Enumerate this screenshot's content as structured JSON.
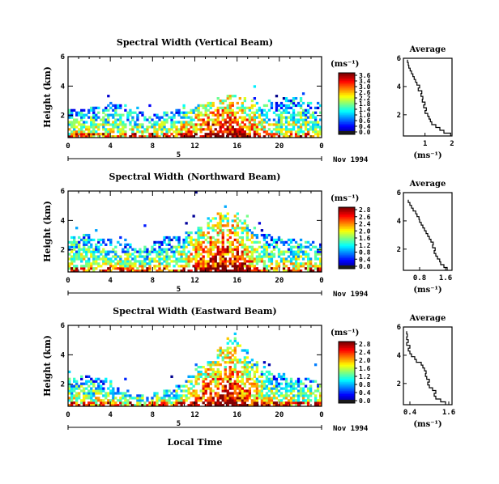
{
  "chart_data": [
    {
      "type": "heatmap",
      "title": "Spectral Width (Vertical Beam)",
      "ylabel": "Height (km)",
      "xlabel": "",
      "x_ticks": [
        "0",
        "4",
        "8",
        "12",
        "16",
        "20",
        "0"
      ],
      "y_ticks": [
        "2",
        "4",
        "6"
      ],
      "xlim": [
        0,
        24
      ],
      "ylim": [
        0.5,
        6
      ],
      "date_marker": "5",
      "date_label": "Nov 1994",
      "colorbar": {
        "unit": "(ms⁻¹)",
        "ticks": [
          "3.6",
          "3.4",
          "3.0",
          "2.6",
          "2.2",
          "1.8",
          "1.4",
          "1.0",
          "0.6",
          "0.4",
          "0.0"
        ],
        "range": [
          0,
          3.6
        ]
      },
      "density": {
        "top_km": [
          2.4,
          2.5,
          2.6,
          2.6,
          2.7,
          2.4,
          2.2,
          2.0,
          2.1,
          2.3,
          2.4,
          2.5,
          2.7,
          2.9,
          3.2,
          3.4,
          3.3,
          3.0,
          2.8,
          2.9,
          3.2,
          3.3,
          3.0,
          2.7
        ],
        "scale": 1.0
      },
      "average_profile": {
        "title": "Average",
        "xlabel": "(ms⁻¹)",
        "x_ticks": [
          "1",
          "2"
        ],
        "y_ticks": [
          "2",
          "4",
          "6"
        ],
        "xlim": [
          0.2,
          2.0
        ],
        "ylim": [
          0.5,
          6
        ],
        "height_km": [
          0.6,
          0.8,
          1.0,
          1.2,
          1.4,
          1.6,
          1.8,
          2.0,
          2.2,
          2.4,
          2.6,
          2.8,
          3.0,
          3.2,
          3.4,
          3.6,
          3.8,
          4.0,
          4.2,
          4.4,
          4.6,
          4.8,
          5.0,
          5.2,
          5.4,
          5.6,
          5.8
        ],
        "width": [
          1.95,
          1.7,
          1.55,
          1.4,
          1.25,
          1.2,
          1.15,
          1.1,
          1.0,
          1.05,
          0.95,
          1.0,
          0.9,
          0.92,
          0.85,
          0.88,
          0.75,
          0.8,
          0.7,
          0.65,
          0.6,
          0.55,
          0.5,
          0.45,
          0.4,
          0.38,
          0.35
        ]
      }
    },
    {
      "type": "heatmap",
      "title": "Spectral Width (Northward Beam)",
      "ylabel": "Height (km)",
      "xlabel": "",
      "x_ticks": [
        "0",
        "4",
        "8",
        "12",
        "16",
        "20",
        "0"
      ],
      "y_ticks": [
        "2",
        "4",
        "6"
      ],
      "xlim": [
        0,
        24
      ],
      "ylim": [
        0.5,
        6
      ],
      "date_marker": "5",
      "date_label": "Nov 1994",
      "colorbar": {
        "unit": "(ms⁻¹)",
        "ticks": [
          "2.8",
          "2.6",
          "2.4",
          "2.0",
          "1.6",
          "1.2",
          "0.8",
          "0.4",
          "0.0"
        ],
        "range": [
          0,
          2.8
        ]
      },
      "density": {
        "top_km": [
          3.0,
          3.1,
          2.8,
          2.7,
          2.6,
          2.4,
          2.2,
          2.3,
          2.6,
          2.9,
          3.0,
          3.2,
          3.6,
          4.2,
          4.6,
          4.4,
          4.0,
          3.6,
          3.1,
          2.9,
          2.8,
          2.7,
          2.6,
          2.4
        ],
        "scale": 1.0
      },
      "average_profile": {
        "title": "Average",
        "xlabel": "(ms⁻¹)",
        "x_ticks": [
          "0.8",
          "1.6"
        ],
        "y_ticks": [
          "2",
          "4",
          "6"
        ],
        "xlim": [
          0.3,
          1.8
        ],
        "ylim": [
          0.5,
          6
        ],
        "height_km": [
          0.6,
          0.8,
          1.0,
          1.2,
          1.4,
          1.6,
          1.8,
          2.0,
          2.2,
          2.4,
          2.6,
          2.8,
          3.0,
          3.2,
          3.4,
          3.6,
          3.8,
          4.0,
          4.2,
          4.4,
          4.6,
          4.8,
          5.0,
          5.2,
          5.4
        ],
        "width": [
          1.65,
          1.55,
          1.45,
          1.42,
          1.35,
          1.3,
          1.25,
          1.28,
          1.2,
          1.22,
          1.15,
          1.1,
          1.05,
          1.0,
          0.95,
          0.9,
          0.85,
          0.8,
          0.78,
          0.72,
          0.68,
          0.6,
          0.55,
          0.5,
          0.45
        ]
      }
    },
    {
      "type": "heatmap",
      "title": "Spectral Width (Eastward Beam)",
      "ylabel": "Height (km)",
      "xlabel": "Local Time",
      "x_ticks": [
        "0",
        "4",
        "8",
        "12",
        "16",
        "20",
        "0"
      ],
      "y_ticks": [
        "2",
        "4",
        "6"
      ],
      "xlim": [
        0,
        24
      ],
      "ylim": [
        0.5,
        6
      ],
      "date_marker": "5",
      "date_label": "Nov 1994",
      "colorbar": {
        "unit": "(ms⁻¹)",
        "ticks": [
          "2.8",
          "2.4",
          "2.0",
          "1.6",
          "1.2",
          "0.8",
          "0.4",
          "0.0"
        ],
        "range": [
          0,
          2.8
        ]
      },
      "density": {
        "top_km": [
          2.5,
          2.6,
          2.4,
          2.2,
          1.8,
          1.5,
          1.3,
          1.2,
          1.4,
          1.6,
          2.0,
          2.6,
          3.2,
          3.6,
          4.4,
          5.2,
          4.4,
          3.6,
          3.0,
          2.8,
          2.6,
          2.5,
          2.4,
          2.4
        ],
        "scale": 1.0
      },
      "average_profile": {
        "title": "Average",
        "xlabel": "(ms⁻¹)",
        "x_ticks": [
          "0.4",
          "1.6"
        ],
        "y_ticks": [
          "2",
          "4",
          "6"
        ],
        "xlim": [
          0.2,
          1.7
        ],
        "ylim": [
          0.5,
          6
        ],
        "height_km": [
          0.6,
          0.8,
          1.0,
          1.2,
          1.4,
          1.6,
          1.8,
          2.0,
          2.2,
          2.4,
          2.6,
          2.8,
          3.0,
          3.2,
          3.4,
          3.6,
          3.8,
          4.0,
          4.2,
          4.4,
          4.6,
          4.8,
          5.0,
          5.2,
          5.4,
          5.6
        ],
        "width": [
          1.5,
          1.35,
          1.2,
          1.15,
          1.2,
          1.1,
          1.0,
          0.95,
          1.0,
          0.92,
          0.88,
          0.9,
          0.85,
          0.8,
          0.75,
          0.6,
          0.55,
          0.45,
          0.4,
          0.35,
          0.4,
          0.3,
          0.35,
          0.3,
          0.32,
          0.3
        ]
      }
    }
  ]
}
